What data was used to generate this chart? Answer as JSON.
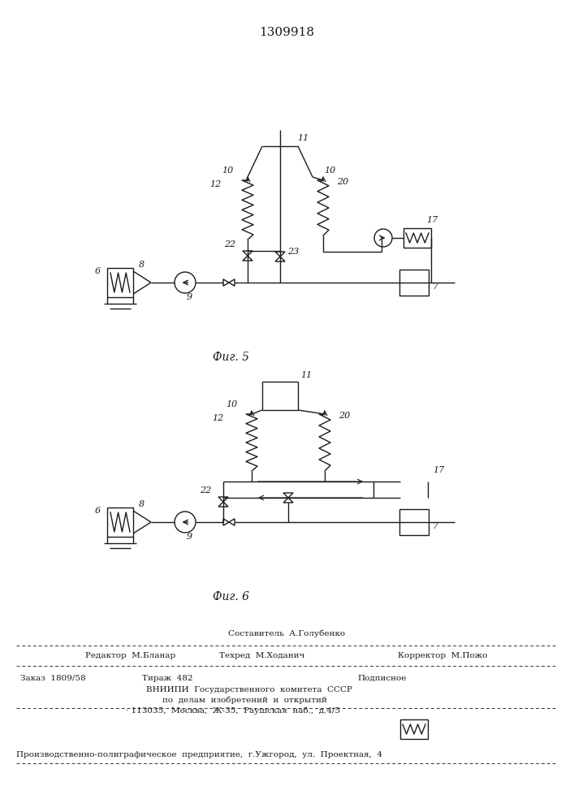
{
  "title": "1309918",
  "fig5_label": "Фиг. 5",
  "fig6_label": "Фиг. 6",
  "bg_color": "#ffffff",
  "line_color": "#1a1a1a",
  "footer_line1": "Составитель  А.Голубенко",
  "footer_line2a": "Редактор  М.Бланар",
  "footer_line2b": "Техред  М.Ходанич",
  "footer_line2c": "Корректор  М.Пожо",
  "footer_line3a": "Заказ  1809/58",
  "footer_line3b": "Тираж  482",
  "footer_line3c": "Подписное",
  "footer_line4": "ВНИИПИ  Государственного  комитета  СССР",
  "footer_line5": "по  делам  изобретений  и  открытий",
  "footer_line6": "· 113035,  Москва,  Ж-35,  Раушская  наб.,  д.4/5",
  "footer_line7": "Производственно-полиграфическое  предприятие,  г.Ужгород,  ул.  Проектная,  4"
}
